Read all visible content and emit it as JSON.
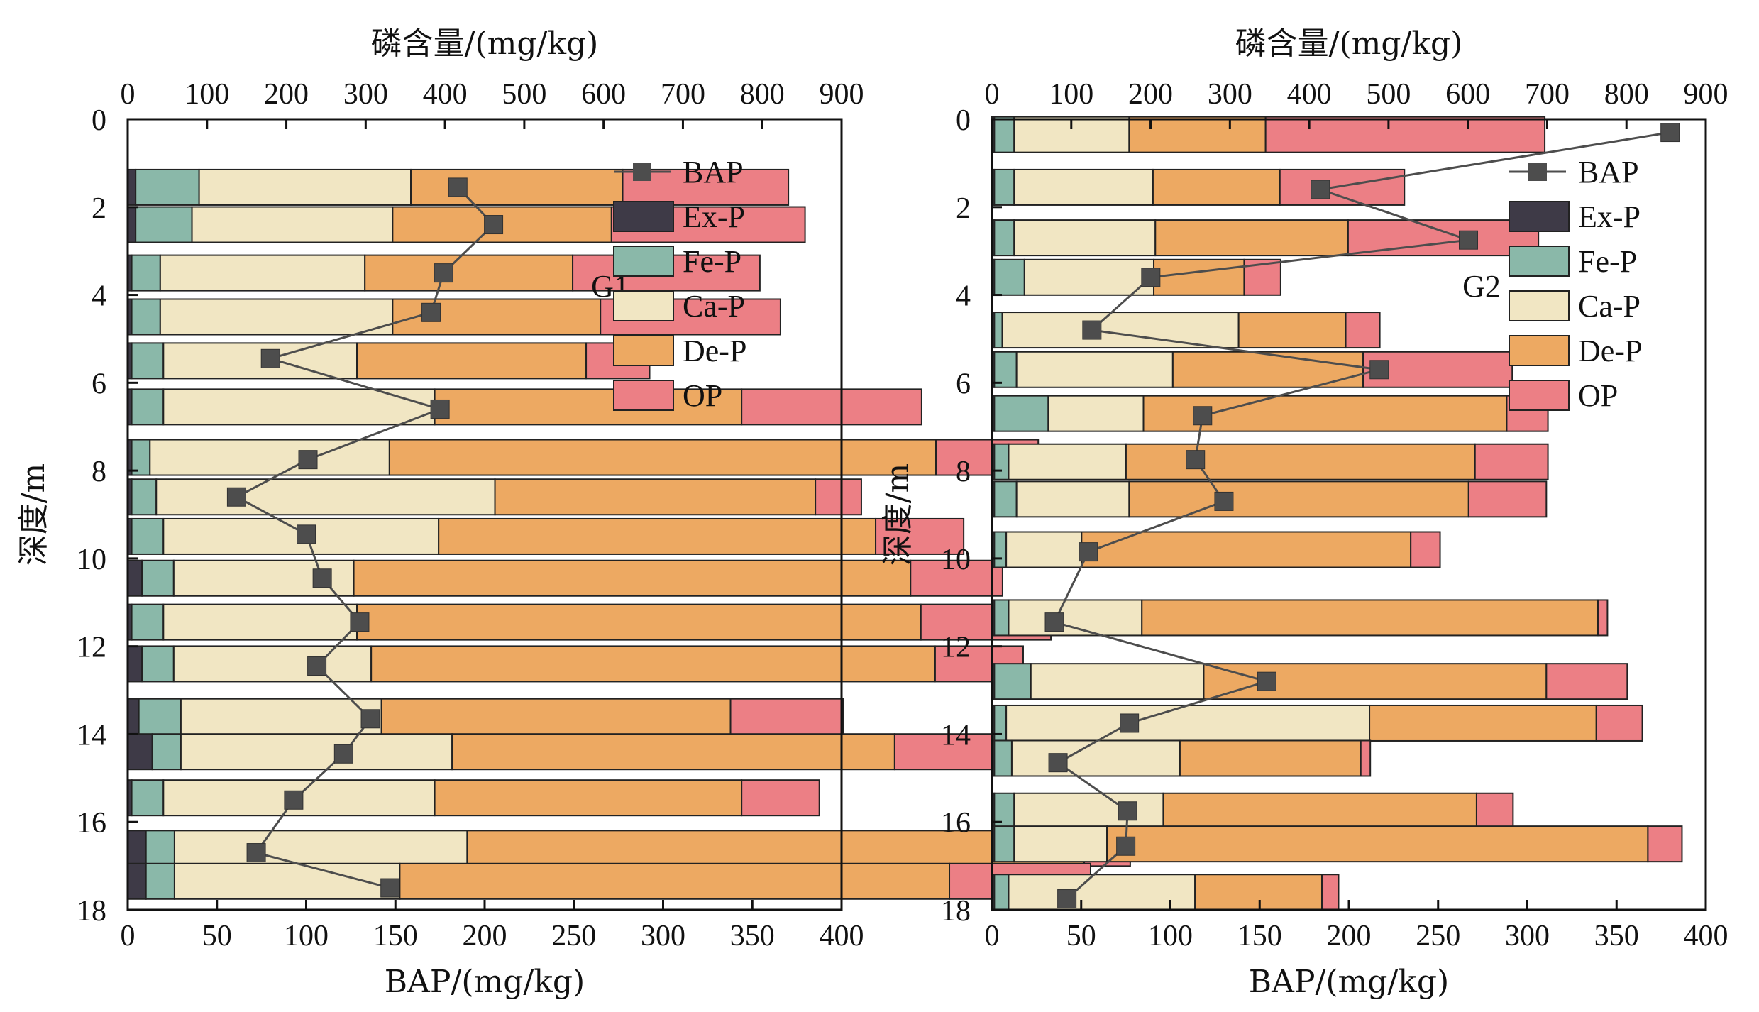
{
  "chart_data": [
    {
      "type": "bar",
      "orientation": "horizontal-stacked",
      "panel_label": "G1",
      "top_xlabel": "磷含量/(mg/kg)",
      "top_xlim": [
        0,
        900
      ],
      "top_xticks": [
        0,
        100,
        200,
        300,
        400,
        500,
        600,
        700,
        800,
        900
      ],
      "bottom_xlabel": "BAP/(mg/kg)",
      "bottom_xlim": [
        0,
        400
      ],
      "bottom_xticks": [
        0,
        50,
        100,
        150,
        200,
        250,
        300,
        350,
        400
      ],
      "ylabel": "深度/m",
      "ylim": [
        0,
        18
      ],
      "yticks": [
        0,
        2,
        4,
        6,
        8,
        10,
        12,
        14,
        16,
        18
      ],
      "legend": [
        "BAP",
        "Ex-P",
        "Fe-P",
        "Ca-P",
        "De-P",
        "OP"
      ],
      "legend_position": "top-right",
      "series_colors": {
        "Ex-P": "#3e3a47",
        "Fe-P": "#8ab8a9",
        "Ca-P": "#f1e6c3",
        "De-P": "#eda962",
        "OP": "#ec7f85",
        "BAP": "#4d4d4d"
      },
      "bars": [
        {
          "depth": 1.55,
          "Ex-P": 10,
          "Fe-P": 80,
          "Ca-P": 267,
          "De-P": 267,
          "OP": 209
        },
        {
          "depth": 2.4,
          "Ex-P": 10,
          "Fe-P": 71,
          "Ca-P": 253,
          "De-P": 276,
          "OP": 244
        },
        {
          "depth": 3.5,
          "Ex-P": 5,
          "Fe-P": 36,
          "Ca-P": 258,
          "De-P": 262,
          "OP": 236
        },
        {
          "depth": 4.5,
          "Ex-P": 5,
          "Fe-P": 36,
          "Ca-P": 293,
          "De-P": 262,
          "OP": 227
        },
        {
          "depth": 5.5,
          "Ex-P": 5,
          "Fe-P": 40,
          "Ca-P": 244,
          "De-P": 289,
          "OP": 80
        },
        {
          "depth": 6.55,
          "Ex-P": 5,
          "Fe-P": 40,
          "Ca-P": 342,
          "De-P": 387,
          "OP": 227
        },
        {
          "depth": 7.7,
          "Ex-P": 5,
          "Fe-P": 23,
          "Ca-P": 302,
          "De-P": 689,
          "OP": 129
        },
        {
          "depth": 8.6,
          "Ex-P": 5,
          "Fe-P": 31,
          "Ca-P": 427,
          "De-P": 404,
          "OP": 58
        },
        {
          "depth": 9.5,
          "Ex-P": 5,
          "Fe-P": 40,
          "Ca-P": 347,
          "De-P": 551,
          "OP": 111
        },
        {
          "depth": 10.45,
          "Ex-P": 18,
          "Fe-P": 40,
          "Ca-P": 227,
          "De-P": 702,
          "OP": 116
        },
        {
          "depth": 11.45,
          "Ex-P": 5,
          "Fe-P": 40,
          "Ca-P": 244,
          "De-P": 711,
          "OP": 164
        },
        {
          "depth": 12.4,
          "Ex-P": 18,
          "Fe-P": 40,
          "Ca-P": 249,
          "De-P": 711,
          "OP": 111
        },
        {
          "depth": 13.6,
          "Ex-P": 14,
          "Fe-P": 53,
          "Ca-P": 253,
          "De-P": 440,
          "OP": 142
        },
        {
          "depth": 14.4,
          "Ex-P": 31,
          "Fe-P": 36,
          "Ca-P": 342,
          "De-P": 558,
          "OP": 124
        },
        {
          "depth": 15.45,
          "Ex-P": 5,
          "Fe-P": 40,
          "Ca-P": 342,
          "De-P": 387,
          "OP": 98
        },
        {
          "depth": 16.6,
          "Ex-P": 23,
          "Fe-P": 36,
          "Ca-P": 369,
          "De-P": 778,
          "OP": 58
        },
        {
          "depth": 17.35,
          "Ex-P": 23,
          "Fe-P": 36,
          "Ca-P": 284,
          "De-P": 693,
          "OP": 178
        }
      ],
      "bap_points": [
        {
          "bap": 185,
          "depth": 1.55
        },
        {
          "bap": 205,
          "depth": 2.4
        },
        {
          "bap": 177,
          "depth": 3.5
        },
        {
          "bap": 170,
          "depth": 4.4
        },
        {
          "bap": 80,
          "depth": 5.45
        },
        {
          "bap": 175,
          "depth": 6.6
        },
        {
          "bap": 101,
          "depth": 7.75
        },
        {
          "bap": 61,
          "depth": 8.6
        },
        {
          "bap": 100,
          "depth": 9.45
        },
        {
          "bap": 109,
          "depth": 10.45
        },
        {
          "bap": 130,
          "depth": 11.45
        },
        {
          "bap": 106,
          "depth": 12.45
        },
        {
          "bap": 136,
          "depth": 13.65
        },
        {
          "bap": 121,
          "depth": 14.45
        },
        {
          "bap": 93,
          "depth": 15.5
        },
        {
          "bap": 72,
          "depth": 16.7
        },
        {
          "bap": 147,
          "depth": 17.5
        }
      ]
    },
    {
      "type": "bar",
      "orientation": "horizontal-stacked",
      "panel_label": "G2",
      "top_xlabel": "磷含量/(mg/kg)",
      "top_xlim": [
        0,
        900
      ],
      "top_xticks": [
        0,
        100,
        200,
        300,
        400,
        500,
        600,
        700,
        800,
        900
      ],
      "bottom_xlabel": "BAP/(mg/kg)",
      "bottom_xlim": [
        0,
        400
      ],
      "bottom_xticks": [
        0,
        50,
        100,
        150,
        200,
        250,
        300,
        350,
        400
      ],
      "ylabel": "深度/m",
      "ylim": [
        0,
        18
      ],
      "yticks": [
        0,
        2,
        4,
        6,
        8,
        10,
        12,
        14,
        16,
        18
      ],
      "legend": [
        "BAP",
        "Ex-P",
        "Fe-P",
        "Ca-P",
        "De-P",
        "OP"
      ],
      "legend_position": "top-right",
      "series_colors": {
        "Ex-P": "#3e3a47",
        "Fe-P": "#8ab8a9",
        "Ca-P": "#f1e6c3",
        "De-P": "#eda962",
        "OP": "#ec7f85",
        "BAP": "#4d4d4d"
      },
      "bars": [
        {
          "depth": 0.35,
          "Ex-P": 3,
          "Fe-P": 25,
          "Ca-P": 145,
          "De-P": 172,
          "OP": 352
        },
        {
          "depth": 1.55,
          "Ex-P": 3,
          "Fe-P": 25,
          "Ca-P": 175,
          "De-P": 160,
          "OP": 157
        },
        {
          "depth": 2.7,
          "Ex-P": 3,
          "Fe-P": 25,
          "Ca-P": 178,
          "De-P": 243,
          "OP": 240
        },
        {
          "depth": 3.6,
          "Ex-P": 3,
          "Fe-P": 38,
          "Ca-P": 163,
          "De-P": 114,
          "OP": 46
        },
        {
          "depth": 4.8,
          "Ex-P": 3,
          "Fe-P": 10,
          "Ca-P": 298,
          "De-P": 135,
          "OP": 43
        },
        {
          "depth": 5.7,
          "Ex-P": 3,
          "Fe-P": 28,
          "Ca-P": 197,
          "De-P": 240,
          "OP": 188
        },
        {
          "depth": 6.7,
          "Ex-P": 3,
          "Fe-P": 68,
          "Ca-P": 120,
          "De-P": 458,
          "OP": 52
        },
        {
          "depth": 7.8,
          "Ex-P": 3,
          "Fe-P": 18,
          "Ca-P": 148,
          "De-P": 440,
          "OP": 92
        },
        {
          "depth": 8.65,
          "Ex-P": 3,
          "Fe-P": 28,
          "Ca-P": 142,
          "De-P": 428,
          "OP": 98
        },
        {
          "depth": 9.8,
          "Ex-P": 3,
          "Fe-P": 15,
          "Ca-P": 95,
          "De-P": 415,
          "OP": 37
        },
        {
          "depth": 11.35,
          "Ex-P": 3,
          "Fe-P": 18,
          "Ca-P": 168,
          "De-P": 575,
          "OP": 12
        },
        {
          "depth": 12.8,
          "Ex-P": 3,
          "Fe-P": 46,
          "Ca-P": 218,
          "De-P": 432,
          "OP": 102
        },
        {
          "depth": 13.75,
          "Ex-P": 3,
          "Fe-P": 15,
          "Ca-P": 458,
          "De-P": 286,
          "OP": 58
        },
        {
          "depth": 14.55,
          "Ex-P": 3,
          "Fe-P": 22,
          "Ca-P": 212,
          "De-P": 228,
          "OP": 12
        },
        {
          "depth": 15.75,
          "Ex-P": 3,
          "Fe-P": 25,
          "Ca-P": 188,
          "De-P": 395,
          "OP": 46
        },
        {
          "depth": 16.5,
          "Ex-P": 3,
          "Fe-P": 25,
          "Ca-P": 117,
          "De-P": 682,
          "OP": 43
        },
        {
          "depth": 17.6,
          "Ex-P": 3,
          "Fe-P": 18,
          "Ca-P": 235,
          "De-P": 160,
          "OP": 21
        }
      ],
      "bap_points": [
        {
          "bap": 380,
          "depth": 0.3
        },
        {
          "bap": 184,
          "depth": 1.6
        },
        {
          "bap": 267,
          "depth": 2.75
        },
        {
          "bap": 89,
          "depth": 3.6
        },
        {
          "bap": 56,
          "depth": 4.8
        },
        {
          "bap": 217,
          "depth": 5.7
        },
        {
          "bap": 118,
          "depth": 6.75
        },
        {
          "bap": 114,
          "depth": 7.75
        },
        {
          "bap": 130,
          "depth": 8.7
        },
        {
          "bap": 54,
          "depth": 9.85
        },
        {
          "bap": 35,
          "depth": 11.45
        },
        {
          "bap": 154,
          "depth": 12.8
        },
        {
          "bap": 77,
          "depth": 13.75
        },
        {
          "bap": 37,
          "depth": 14.65
        },
        {
          "bap": 76,
          "depth": 15.75
        },
        {
          "bap": 75,
          "depth": 16.55
        },
        {
          "bap": 42,
          "depth": 17.75
        }
      ]
    }
  ]
}
